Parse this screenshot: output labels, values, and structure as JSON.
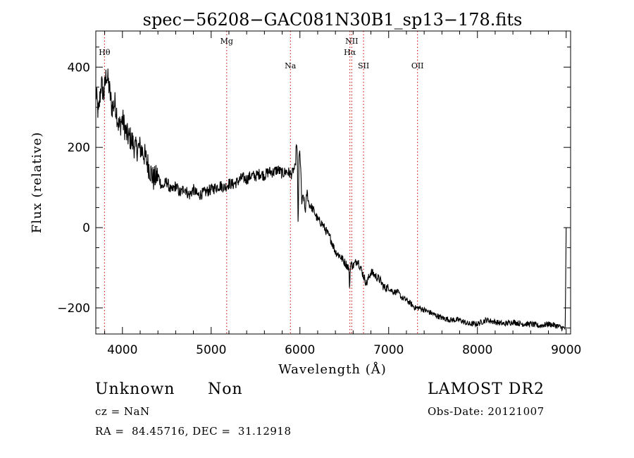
{
  "chart_data": {
    "type": "line",
    "title": "spec−56208−GAC081N30B1_sp13−178.fits",
    "xlabel": "Wavelength (Å)",
    "ylabel": "Flux (relative)",
    "xlim": [
      3700,
      9050
    ],
    "ylim": [
      -265,
      490
    ],
    "xticks": [
      4000,
      5000,
      6000,
      7000,
      8000,
      9000
    ],
    "yticks": [
      -200,
      0,
      200,
      400
    ],
    "yticklabels": [
      "−200",
      "0",
      "200",
      "400"
    ],
    "grid": false,
    "legend": "none",
    "line_color": "#000000",
    "marker_color": "#cc0000",
    "lines": [
      {
        "label": "Hθ",
        "x": 3798,
        "tier": 1
      },
      {
        "label": "Mg",
        "x": 5175,
        "tier": 0
      },
      {
        "label": "Na",
        "x": 5893,
        "tier": 2
      },
      {
        "label": "NII",
        "x": 6584,
        "tier": 0
      },
      {
        "label": "Hα",
        "x": 6563,
        "tier": 1
      },
      {
        "label": "SII",
        "x": 6717,
        "tier": 2
      },
      {
        "label": "OII",
        "x": 7325,
        "tier": 2
      }
    ],
    "spectrum": {
      "x": [
        3700,
        3730,
        3760,
        3790,
        3820,
        3850,
        3880,
        3920,
        3960,
        4000,
        4050,
        4100,
        4150,
        4200,
        4250,
        4300,
        4350,
        4400,
        4450,
        4500,
        4550,
        4600,
        4650,
        4700,
        4750,
        4800,
        4850,
        4900,
        4950,
        5000,
        5050,
        5100,
        5150,
        5200,
        5250,
        5300,
        5350,
        5400,
        5450,
        5500,
        5550,
        5600,
        5650,
        5700,
        5750,
        5800,
        5850,
        5890,
        5900,
        5930,
        5950,
        5960,
        5970,
        5980,
        5990,
        6000,
        6010,
        6020,
        6040,
        6060,
        6080,
        6100,
        6150,
        6200,
        6250,
        6300,
        6350,
        6400,
        6450,
        6500,
        6550,
        6560,
        6570,
        6600,
        6650,
        6700,
        6750,
        6800,
        6850,
        6900,
        6950,
        7000,
        7050,
        7100,
        7150,
        7200,
        7250,
        7300,
        7350,
        7400,
        7450,
        7500,
        7600,
        7700,
        7800,
        7900,
        8000,
        8100,
        8200,
        8300,
        8400,
        8500,
        8600,
        8700,
        8800,
        8900,
        8960,
        8980,
        8990,
        9000
      ],
      "y": [
        340,
        280,
        360,
        330,
        385,
        350,
        300,
        310,
        250,
        270,
        230,
        220,
        195,
        200,
        180,
        150,
        120,
        130,
        100,
        115,
        90,
        105,
        85,
        100,
        80,
        95,
        80,
        85,
        90,
        95,
        100,
        105,
        100,
        110,
        108,
        115,
        125,
        120,
        130,
        128,
        135,
        130,
        140,
        138,
        145,
        135,
        140,
        135,
        130,
        145,
        150,
        215,
        180,
        0,
        175,
        190,
        140,
        60,
        80,
        40,
        90,
        60,
        45,
        20,
        10,
        -10,
        -30,
        -60,
        -70,
        -85,
        -100,
        -150,
        -90,
        -95,
        -80,
        -110,
        -140,
        -110,
        -120,
        -130,
        -150,
        -150,
        -160,
        -160,
        -175,
        -180,
        -190,
        -200,
        -200,
        -205,
        -210,
        -215,
        -225,
        -230,
        -230,
        -240,
        -240,
        -230,
        -235,
        -240,
        -235,
        -240,
        -240,
        -245,
        -240,
        -245,
        -250,
        -250,
        -250,
        0
      ]
    }
  },
  "info": {
    "object_class": "Unknown",
    "subclass": "Non",
    "cz": "cz = NaN",
    "radec": "RA =  84.45716, DEC =  31.12918",
    "survey": "LAMOST DR2",
    "obs_date": "Obs-Date: 20121007"
  }
}
